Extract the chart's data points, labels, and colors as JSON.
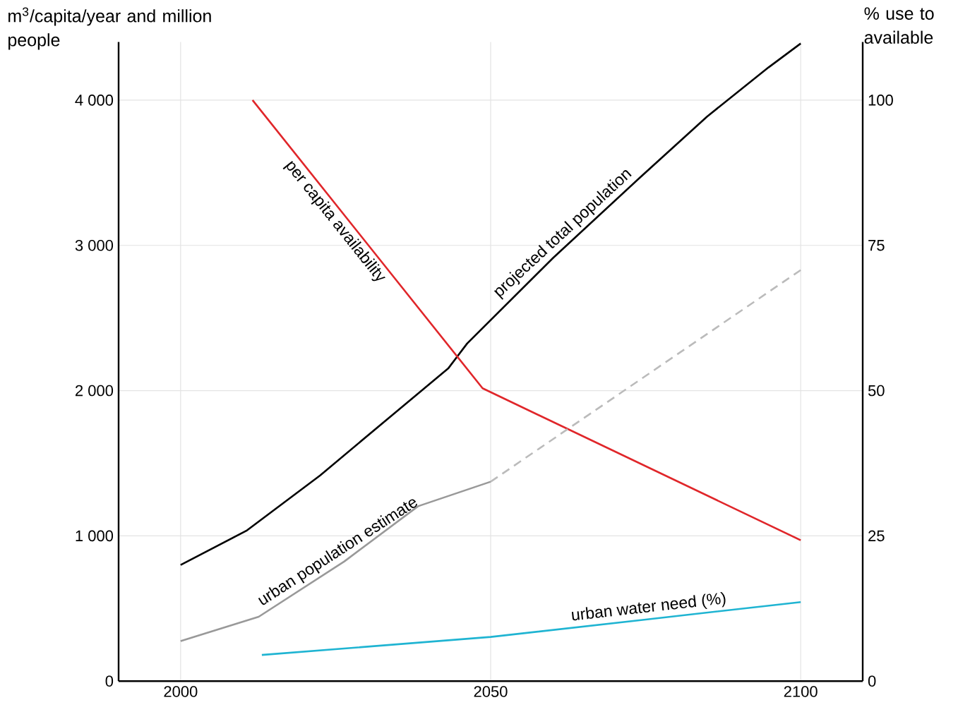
{
  "chart_data": {
    "type": "line",
    "ylabel": "m$^{3}$/capita/year and million people",
    "y2label": "% use to available",
    "xlim": [
      1990,
      2110
    ],
    "xticks": [
      2000,
      2050,
      2100
    ],
    "ylim": [
      0,
      4400
    ],
    "yticks": [
      0,
      {
        "value": 1000,
        "label": "1 000"
      },
      {
        "value": 2000,
        "label": "2 000"
      },
      {
        "value": 3000,
        "label": "3 000"
      },
      {
        "value": 4000,
        "label": "4 000"
      }
    ],
    "y2lim": [
      0,
      110
    ],
    "y2ticks": [
      0,
      25,
      50,
      75,
      100
    ],
    "grid": true,
    "series": [
      {
        "name": "projected total population",
        "color": "#000000",
        "x": [
          2000,
          2010.6,
          2022.5,
          2034.3,
          2043.2,
          2046.2,
          2060.1,
          2074,
          2084.9,
          2094.8,
          2100
        ],
        "values": [
          800,
          1035,
          1416,
          1838,
          2155,
          2324,
          2915,
          3464,
          3887,
          4225,
          4390
        ]
      },
      {
        "name": "per capita availability",
        "color": "#e0262a",
        "x": [
          2011.6,
          2048.7,
          2100
        ],
        "values": [
          4000,
          2016,
          970
        ]
      },
      {
        "name": "urban population estimate",
        "color": "#999999",
        "x": [
          2000,
          2012.6,
          2026.4,
          2038.3,
          2050
        ],
        "values": [
          275,
          443,
          824,
          1204,
          1373
        ]
      },
      {
        "color": "#bbbbbb",
        "line_style": "dashed",
        "x": [
          2050,
          2100
        ],
        "values": [
          1373,
          2830
        ]
      },
      {
        "name": "urban water need (%)",
        "color": "#1fb4d2",
        "axis": "y2",
        "x": [
          2013.1,
          2050,
          2075,
          2100
        ],
        "values": [
          4.5,
          7.6,
          10.6,
          13.6
        ]
      }
    ]
  }
}
